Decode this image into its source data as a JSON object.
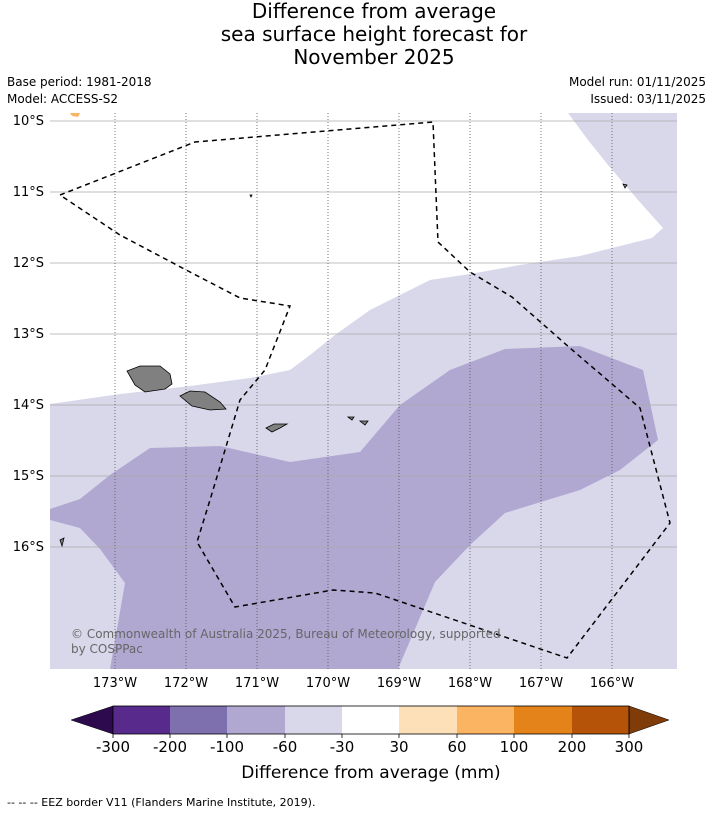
{
  "title": {
    "line1": "Difference from average",
    "line2": "sea surface height forecast for",
    "line3": "November 2025"
  },
  "meta": {
    "base_period": "Base period: 1981-2018",
    "model": "Model: ACCESS-S2",
    "model_run": "Model run: 01/11/2025",
    "issued": "Issued: 03/11/2025"
  },
  "axes": {
    "lat_labels": [
      "10°S",
      "11°S",
      "12°S",
      "13°S",
      "14°S",
      "15°S",
      "16°S"
    ],
    "lon_labels": [
      "173°W",
      "172°W",
      "171°W",
      "170°W",
      "169°W",
      "168°W",
      "167°W",
      "166°W"
    ]
  },
  "copyright": {
    "line1": "© Commonwealth of Australia 2025, Bureau of Meteorology, supported",
    "line2": "by COSPPac"
  },
  "colorbar": {
    "label": "Difference from average (mm)",
    "ticks": [
      "-300",
      "-200",
      "-100",
      "-60",
      "-30",
      "30",
      "60",
      "100",
      "200",
      "300"
    ],
    "colors": {
      "under": "#2d0a4e",
      "bins": [
        "#582a8c",
        "#7e70ae",
        "#b0a8d1",
        "#d9d8eb",
        "#ffffff",
        "#fde0b7",
        "#fbb462",
        "#e3831a",
        "#b55408"
      ],
      "over": "#7f3b08"
    }
  },
  "map_colors": {
    "band_light": "#d9d8eb",
    "band_mid": "#b0a8d1",
    "land": "#808080",
    "eez": "#000000",
    "positive_speck": "#fbb462"
  },
  "footer": "--  --  -- EEZ border V11 (Flanders Marine Institute, 2019)."
}
